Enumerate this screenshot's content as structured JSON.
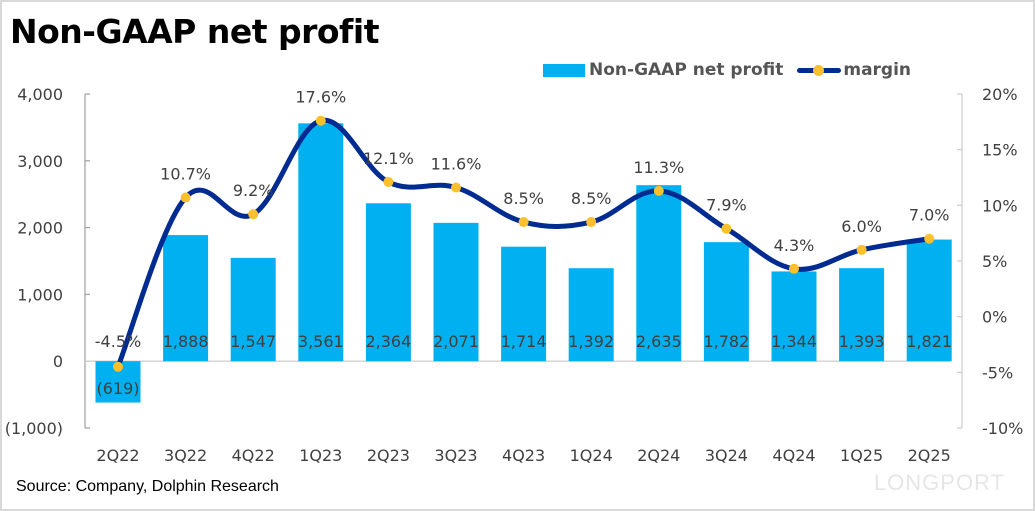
{
  "chart_data": {
    "type": "bar",
    "title": "Non-GAAP net profit",
    "categories": [
      "2Q22",
      "3Q22",
      "4Q22",
      "1Q23",
      "2Q23",
      "3Q23",
      "4Q23",
      "1Q24",
      "2Q24",
      "3Q24",
      "4Q24",
      "1Q25",
      "2Q25"
    ],
    "series": [
      {
        "name": "Non-GAAP net profit",
        "type": "bar",
        "axis": "left",
        "color": "#00b0f0",
        "values": [
          -619,
          1888,
          1547,
          3561,
          2364,
          2071,
          1714,
          1392,
          2635,
          1782,
          1344,
          1393,
          1821
        ],
        "labels": [
          "(619)",
          "1,888",
          "1,547",
          "3,561",
          "2,364",
          "2,071",
          "1,714",
          "1,392",
          "2,635",
          "1,782",
          "1,344",
          "1,393",
          "1,821"
        ]
      },
      {
        "name": "margin",
        "type": "line",
        "axis": "right",
        "color": "#002b90",
        "marker_color": "#fbc02d",
        "values": [
          -4.5,
          10.7,
          9.2,
          17.6,
          12.1,
          11.6,
          8.5,
          8.5,
          11.3,
          7.9,
          4.3,
          6.0,
          7.0
        ],
        "labels": [
          "-4.5%",
          "10.7%",
          "9.2%",
          "17.6%",
          "12.1%",
          "11.6%",
          "8.5%",
          "8.5%",
          "11.3%",
          "7.9%",
          "4.3%",
          "6.0%",
          "7.0%"
        ]
      }
    ],
    "left_axis": {
      "ylim": [
        -1000,
        4000
      ],
      "ticks": [
        4000,
        3000,
        2000,
        1000,
        0,
        -1000
      ],
      "tick_labels": [
        "4,000",
        "3,000",
        "2,000",
        "1,000",
        "0",
        "(1,000)"
      ]
    },
    "right_axis": {
      "ylim": [
        -10,
        20
      ],
      "ticks": [
        20,
        15,
        10,
        5,
        0,
        -5,
        -10
      ],
      "tick_labels": [
        "20%",
        "15%",
        "10%",
        "5%",
        "0%",
        "-5%",
        "-10%"
      ]
    },
    "legend": {
      "position": "top-right",
      "entries": [
        "Non-GAAP net profit",
        "margin"
      ]
    },
    "grid": false,
    "source": "Source: Company, Dolphin Research"
  },
  "watermark": "LONGPORT"
}
